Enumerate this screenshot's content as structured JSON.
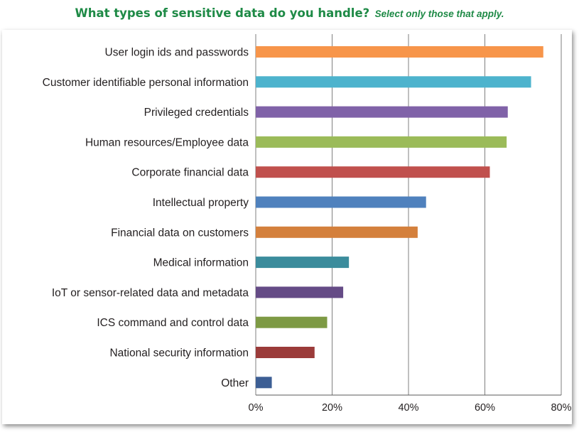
{
  "title": {
    "main": "What types of sensitive data do you handle?",
    "sub": "Select only those that apply."
  },
  "chart_data": {
    "type": "bar",
    "orientation": "horizontal",
    "categories": [
      "User login ids and passwords",
      "Customer identifiable personal information",
      "Privileged credentials",
      "Human resources/Employee data",
      "Corporate financial data",
      "Intellectual property",
      "Financial data on customers",
      "Medical information",
      "IoT or sensor-related data and metadata",
      "ICS command and control data",
      "National security information",
      "Other"
    ],
    "values": [
      75.3,
      72.1,
      66.0,
      65.7,
      61.3,
      44.6,
      42.4,
      24.4,
      22.9,
      18.7,
      15.4,
      4.2
    ],
    "colors": [
      "#f7954a",
      "#4db3cd",
      "#8062a8",
      "#9bbb59",
      "#c0504d",
      "#4f81bd",
      "#d4803c",
      "#3b8c9c",
      "#654b86",
      "#7d9a44",
      "#9b3b3a",
      "#3c5e94"
    ],
    "xlim": [
      0,
      80
    ],
    "xticks": [
      0,
      20,
      40,
      60,
      80
    ],
    "tick_suffix": "%",
    "grid": true,
    "legend": false
  }
}
